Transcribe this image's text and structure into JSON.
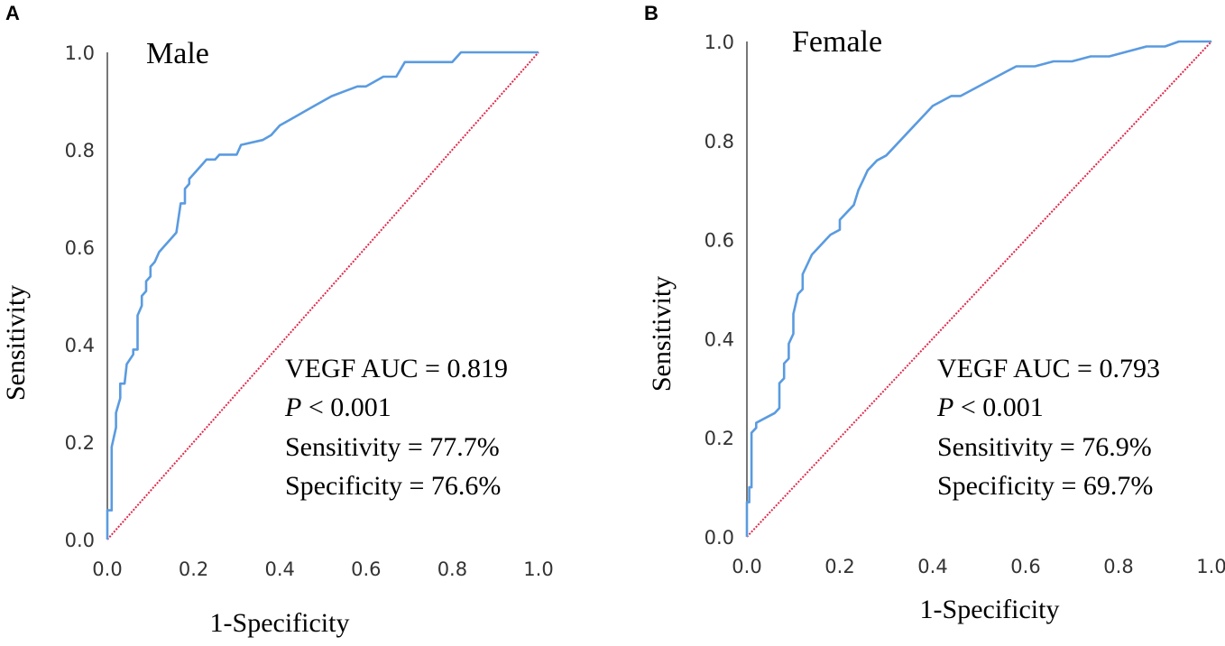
{
  "chart_data": [
    {
      "panel": "A",
      "type": "line",
      "title": "Male",
      "xlabel": "1-Specificity",
      "ylabel": "Sensitivity",
      "xlim": [
        0,
        1
      ],
      "ylim": [
        0,
        1
      ],
      "xticks": [
        "0.0",
        "0.2",
        "0.4",
        "0.6",
        "0.8",
        "1.0"
      ],
      "yticks": [
        "0.0",
        "0.2",
        "0.4",
        "0.6",
        "0.8",
        "1.0"
      ],
      "reference_line": {
        "name": "Reference",
        "x": [
          0,
          1
        ],
        "y": [
          0,
          1
        ],
        "color": "#e0284a"
      },
      "series": [
        {
          "name": "VEGF",
          "color": "#5a9be0",
          "x": [
            0.0,
            0.0,
            0.01,
            0.01,
            0.02,
            0.02,
            0.03,
            0.03,
            0.04,
            0.045,
            0.06,
            0.06,
            0.07,
            0.07,
            0.08,
            0.08,
            0.09,
            0.09,
            0.1,
            0.1,
            0.11,
            0.12,
            0.13,
            0.14,
            0.15,
            0.16,
            0.17,
            0.18,
            0.18,
            0.19,
            0.19,
            0.2,
            0.21,
            0.22,
            0.23,
            0.25,
            0.26,
            0.3,
            0.31,
            0.36,
            0.38,
            0.4,
            0.42,
            0.44,
            0.46,
            0.48,
            0.5,
            0.52,
            0.55,
            0.58,
            0.6,
            0.62,
            0.64,
            0.67,
            0.69,
            0.7,
            0.8,
            0.82,
            1.0
          ],
          "y": [
            0.0,
            0.06,
            0.06,
            0.19,
            0.23,
            0.26,
            0.29,
            0.32,
            0.32,
            0.36,
            0.38,
            0.39,
            0.39,
            0.46,
            0.48,
            0.5,
            0.51,
            0.53,
            0.54,
            0.56,
            0.57,
            0.59,
            0.6,
            0.61,
            0.62,
            0.63,
            0.69,
            0.69,
            0.72,
            0.73,
            0.74,
            0.75,
            0.76,
            0.77,
            0.78,
            0.78,
            0.79,
            0.79,
            0.81,
            0.82,
            0.83,
            0.85,
            0.86,
            0.87,
            0.88,
            0.89,
            0.9,
            0.91,
            0.92,
            0.93,
            0.93,
            0.94,
            0.95,
            0.95,
            0.98,
            0.98,
            0.98,
            1.0,
            1.0
          ]
        }
      ],
      "annotations": [
        {
          "prefix": "VEGF AUC = 0.819",
          "italic": "",
          "suffix": ""
        },
        {
          "prefix": "",
          "italic": "P",
          "suffix": " < 0.001"
        },
        {
          "prefix": "Sensitivity = 77.7%",
          "italic": "",
          "suffix": ""
        },
        {
          "prefix": "Specificity = 76.6%",
          "italic": "",
          "suffix": ""
        }
      ]
    },
    {
      "panel": "B",
      "type": "line",
      "title": "Female",
      "xlabel": "1-Specificity",
      "ylabel": "Sensitivity",
      "xlim": [
        0,
        1
      ],
      "ylim": [
        0,
        1
      ],
      "xticks": [
        "0.0",
        "0.2",
        "0.4",
        "0.6",
        "0.8",
        "1.0"
      ],
      "yticks": [
        "0.0",
        "0.2",
        "0.4",
        "0.6",
        "0.8",
        "1.0"
      ],
      "reference_line": {
        "name": "Reference",
        "x": [
          0,
          1
        ],
        "y": [
          0,
          1
        ],
        "color": "#e0284a"
      },
      "series": [
        {
          "name": "VEGF",
          "color": "#5a9be0",
          "x": [
            0.0,
            0.0,
            0.005,
            0.005,
            0.01,
            0.01,
            0.02,
            0.02,
            0.04,
            0.06,
            0.07,
            0.07,
            0.08,
            0.08,
            0.09,
            0.09,
            0.1,
            0.1,
            0.11,
            0.12,
            0.12,
            0.13,
            0.14,
            0.15,
            0.16,
            0.17,
            0.18,
            0.2,
            0.2,
            0.22,
            0.23,
            0.24,
            0.25,
            0.26,
            0.27,
            0.28,
            0.3,
            0.32,
            0.34,
            0.36,
            0.38,
            0.4,
            0.42,
            0.44,
            0.46,
            0.48,
            0.5,
            0.52,
            0.54,
            0.56,
            0.58,
            0.62,
            0.66,
            0.7,
            0.74,
            0.78,
            0.82,
            0.86,
            0.9,
            0.93,
            1.0
          ],
          "y": [
            0.0,
            0.07,
            0.07,
            0.1,
            0.1,
            0.21,
            0.22,
            0.23,
            0.24,
            0.25,
            0.26,
            0.31,
            0.32,
            0.35,
            0.36,
            0.39,
            0.41,
            0.45,
            0.49,
            0.5,
            0.53,
            0.55,
            0.57,
            0.58,
            0.59,
            0.6,
            0.61,
            0.62,
            0.64,
            0.66,
            0.67,
            0.7,
            0.72,
            0.74,
            0.75,
            0.76,
            0.77,
            0.79,
            0.81,
            0.83,
            0.85,
            0.87,
            0.88,
            0.89,
            0.89,
            0.9,
            0.91,
            0.92,
            0.93,
            0.94,
            0.95,
            0.95,
            0.96,
            0.96,
            0.97,
            0.97,
            0.98,
            0.99,
            0.99,
            1.0,
            1.0
          ]
        }
      ],
      "annotations": [
        {
          "prefix": "VEGF AUC = 0.793",
          "italic": "",
          "suffix": ""
        },
        {
          "prefix": "",
          "italic": "P",
          "suffix": " < 0.001"
        },
        {
          "prefix": "Sensitivity = 76.9%",
          "italic": "",
          "suffix": ""
        },
        {
          "prefix": "Specificity = 69.7%",
          "italic": "",
          "suffix": ""
        }
      ]
    }
  ]
}
